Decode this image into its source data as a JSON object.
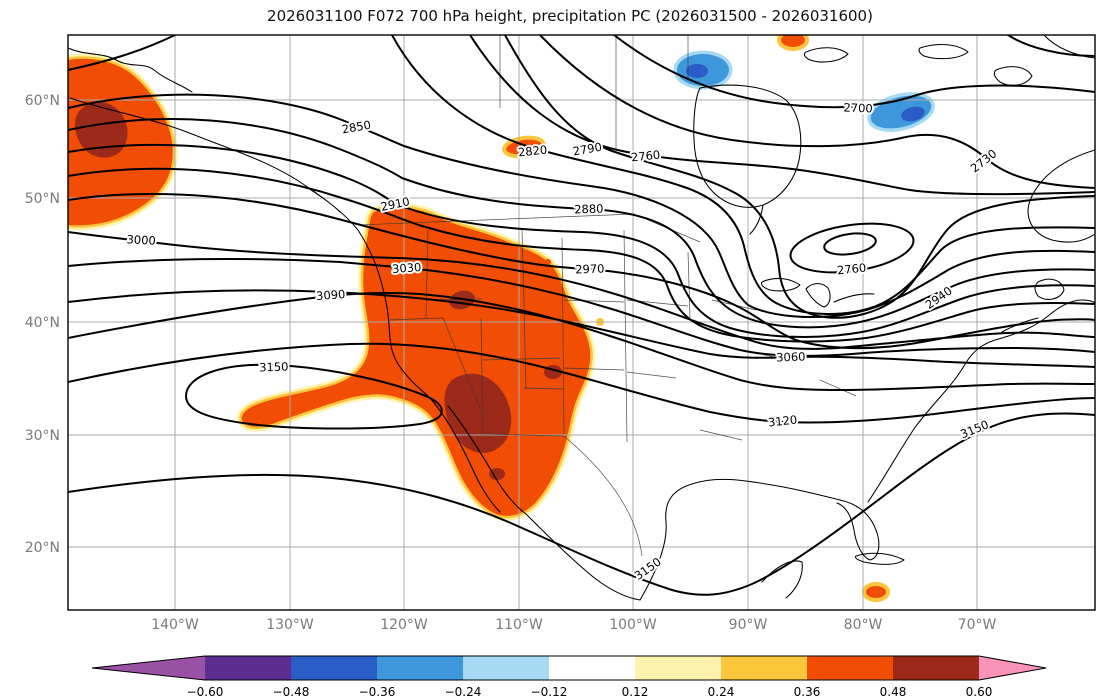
{
  "title": "2026031100 F072 700 hPa height, precipitation PC (2026031500 - 2026031600)",
  "chart_data": {
    "type": "contour-map",
    "title": "2026031100 F072 700 hPa height, precipitation PC (2026031500 - 2026031600)",
    "region_shown": "North America",
    "x_axis": {
      "ticks": [
        "140°W",
        "130°W",
        "120°W",
        "110°W",
        "100°W",
        "90°W",
        "80°W",
        "70°W"
      ]
    },
    "y_axis": {
      "ticks": [
        "60°N",
        "50°N",
        "40°N",
        "30°N",
        "20°N"
      ]
    },
    "contours": {
      "field": "700 hPa height",
      "interval": 30,
      "labeled_levels": [
        2700,
        2730,
        2760,
        2790,
        2820,
        2850,
        2880,
        2910,
        2940,
        2970,
        3000,
        3030,
        3060,
        3090,
        3120,
        3150
      ]
    },
    "contour_labels": [
      "2850",
      "2820",
      "2790",
      "2760",
      "2700",
      "2730",
      "2910",
      "2880",
      "2970",
      "3000",
      "3030",
      "3090",
      "3150",
      "2760",
      "2940",
      "3060",
      "3120",
      "3150",
      "3150"
    ],
    "shaded_field": "precipitation PC",
    "colorbar": {
      "ticks": [
        "−0.60",
        "−0.48",
        "−0.36",
        "−0.24",
        "−0.12",
        "0.12",
        "0.24",
        "0.36",
        "0.48",
        "0.60"
      ],
      "colors": [
        "#5E2D91",
        "#2A5CC8",
        "#3E97DB",
        "#A6D9F2",
        "#FFFFFF",
        "#FFF2AE",
        "#FCC63B",
        "#F24D05",
        "#9C2A1A"
      ],
      "under_color": "#9A52A5",
      "over_color": "#F893B9"
    }
  }
}
